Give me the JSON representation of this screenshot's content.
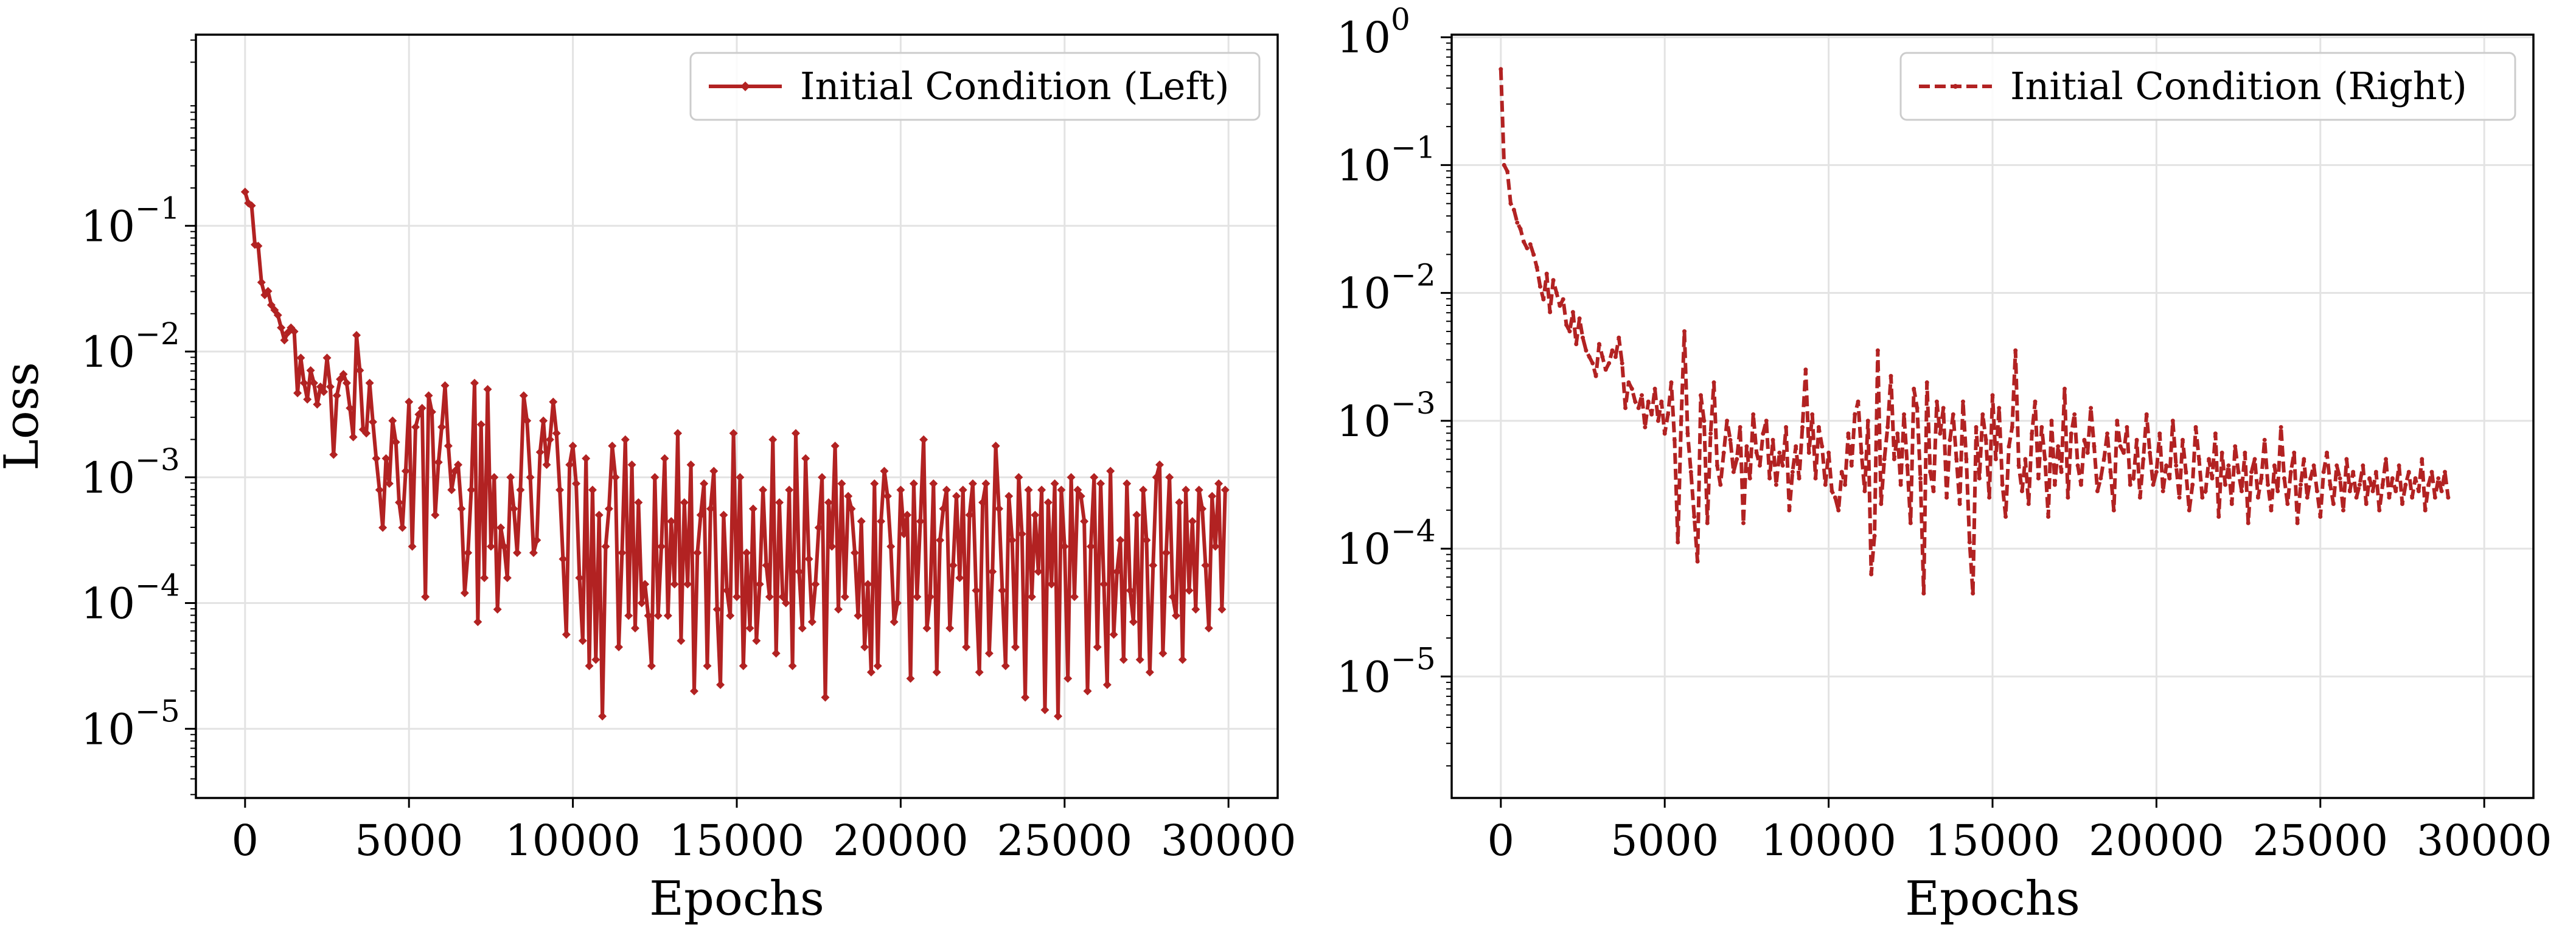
{
  "chart_data": [
    {
      "type": "line",
      "panel": "left",
      "title": "",
      "xlabel": "Epochs",
      "ylabel": "Loss",
      "yscale": "log",
      "xlim": [
        -1500,
        31500
      ],
      "ylim_exp": [
        -5.55,
        0.52
      ],
      "xticks": [
        0,
        5000,
        10000,
        15000,
        20000,
        25000,
        30000
      ],
      "xtick_labels": [
        "0",
        "5000",
        "10000",
        "15000",
        "20000",
        "25000",
        "30000"
      ],
      "yticks_exp": [
        -5,
        -4,
        -3,
        -2,
        -1
      ],
      "ytick_base": "10",
      "ytick_exps": [
        "−5",
        "−4",
        "−3",
        "−2",
        "−1"
      ],
      "grid": true,
      "legend_position": "top-right",
      "series": [
        {
          "name": "Initial Condition (Left)",
          "color": "#b22222",
          "line_style": "solid",
          "marker": "diamond",
          "x_start": 0,
          "x_step": 100,
          "log10_values": [
            -0.73,
            -0.82,
            -0.84,
            -1.15,
            -1.16,
            -1.45,
            -1.55,
            -1.52,
            -1.63,
            -1.67,
            -1.71,
            -1.81,
            -1.91,
            -1.85,
            -1.81,
            -1.84,
            -2.33,
            -2.05,
            -2.25,
            -2.38,
            -2.15,
            -2.25,
            -2.42,
            -2.28,
            -2.32,
            -2.05,
            -2.28,
            -2.82,
            -2.35,
            -2.22,
            -2.18,
            -2.25,
            -2.45,
            -2.68,
            -1.87,
            -2.15,
            -2.62,
            -2.65,
            -2.25,
            -2.56,
            -2.85,
            -3.1,
            -3.4,
            -2.85,
            -3.05,
            -2.55,
            -2.72,
            -3.2,
            -3.4,
            -2.95,
            -2.4,
            -3.55,
            -2.6,
            -2.5,
            -2.45,
            -3.95,
            -2.35,
            -2.48,
            -3.3,
            -2.88,
            -2.6,
            -2.27,
            -2.75,
            -3.1,
            -2.95,
            -2.9,
            -3.25,
            -3.92,
            -3.6,
            -3.1,
            -2.25,
            -4.15,
            -2.58,
            -3.8,
            -2.3,
            -3.55,
            -3.0,
            -4.05,
            -3.4,
            -3.55,
            -3.8,
            -3.0,
            -3.25,
            -3.6,
            -3.1,
            -2.35,
            -2.55,
            -3.0,
            -3.6,
            -3.5,
            -2.8,
            -2.55,
            -2.9,
            -2.7,
            -2.4,
            -2.65,
            -3.1,
            -3.65,
            -4.25,
            -2.9,
            -2.75,
            -3.05,
            -3.8,
            -4.3,
            -2.85,
            -4.5,
            -3.1,
            -4.45,
            -3.3,
            -4.9,
            -3.55,
            -3.25,
            -2.75,
            -3.0,
            -4.35,
            -3.6,
            -2.7,
            -4.1,
            -2.9,
            -4.2,
            -3.2,
            -4.0,
            -3.85,
            -4.1,
            -4.5,
            -3.0,
            -4.1,
            -3.55,
            -2.85,
            -4.1,
            -3.35,
            -3.85,
            -2.65,
            -4.3,
            -3.2,
            -3.85,
            -2.9,
            -4.7,
            -3.6,
            -3.3,
            -3.05,
            -4.5,
            -3.25,
            -2.95,
            -4.05,
            -4.65,
            -3.3,
            -3.9,
            -4.1,
            -2.65,
            -3.95,
            -3.0,
            -4.5,
            -3.6,
            -4.2,
            -3.25,
            -4.3,
            -3.85,
            -3.1,
            -3.7,
            -3.95,
            -2.7,
            -4.4,
            -3.2,
            -3.95,
            -4.0,
            -3.1,
            -4.5,
            -2.65,
            -3.75,
            -4.2,
            -2.85,
            -3.65,
            -4.15,
            -3.85,
            -3.4,
            -3.0,
            -4.75,
            -3.2,
            -3.55,
            -2.75,
            -4.05,
            -3.05,
            -3.95,
            -3.15,
            -3.25,
            -3.6,
            -4.1,
            -3.35,
            -4.35,
            -3.85,
            -4.55,
            -3.05,
            -4.5,
            -3.35,
            -2.95,
            -3.15,
            -3.55,
            -4.15,
            -4.0,
            -3.1,
            -3.45,
            -3.3,
            -4.6,
            -3.05,
            -3.95,
            -3.35,
            -2.7,
            -4.2,
            -3.95,
            -3.05,
            -4.55,
            -3.5,
            -3.25,
            -3.1,
            -4.2,
            -3.7,
            -3.15,
            -3.8,
            -3.1,
            -4.35,
            -3.3,
            -3.05,
            -3.9,
            -4.55,
            -3.2,
            -3.05,
            -4.4,
            -3.75,
            -2.75,
            -3.25,
            -3.9,
            -4.5,
            -3.15,
            -3.5,
            -4.35,
            -3.0,
            -3.45,
            -4.75,
            -3.1,
            -3.95,
            -3.3,
            -3.75,
            -3.1,
            -4.85,
            -3.2,
            -3.85,
            -3.05,
            -4.9,
            -3.1,
            -3.55,
            -4.6,
            -3.0,
            -3.95,
            -3.1,
            -3.15,
            -3.35,
            -4.7,
            -3.55,
            -3.0,
            -4.35,
            -3.05,
            -3.85,
            -4.65,
            -2.95,
            -4.25,
            -3.75,
            -3.5,
            -4.45,
            -3.05,
            -3.9,
            -4.15,
            -3.3,
            -4.45,
            -3.1,
            -3.5,
            -4.55,
            -3.7,
            -3.0,
            -2.9,
            -4.4,
            -3.6,
            -3.0,
            -3.95,
            -4.1,
            -3.2,
            -4.45,
            -3.1,
            -3.9,
            -3.35,
            -4.05,
            -3.1,
            -3.25,
            -3.7,
            -4.2,
            -3.15,
            -3.55,
            -3.05,
            -4.05,
            -3.1
          ]
        }
      ]
    },
    {
      "type": "line",
      "panel": "right",
      "title": "",
      "xlabel": "Epochs",
      "ylabel": "",
      "yscale": "log",
      "xlim": [
        -1500,
        31500
      ],
      "ylim_exp": [
        -5.95,
        0.02
      ],
      "xticks": [
        0,
        5000,
        10000,
        15000,
        20000,
        25000,
        30000
      ],
      "xtick_labels": [
        "0",
        "5000",
        "10000",
        "15000",
        "20000",
        "25000",
        "30000"
      ],
      "yticks_exp": [
        -5,
        -4,
        -3,
        -2,
        -1,
        0
      ],
      "ytick_base": "10",
      "ytick_exps": [
        "−5",
        "−4",
        "−3",
        "−2",
        "−1",
        "0"
      ],
      "grid": true,
      "legend_position": "top-right",
      "series": [
        {
          "name": "Initial Condition (Right)",
          "color": "#b22222",
          "line_style": "dashed",
          "marker": "small",
          "x_start": 0,
          "x_step": 100,
          "log10_values": [
            -0.25,
            -1.0,
            -1.05,
            -1.3,
            -1.35,
            -1.45,
            -1.5,
            -1.6,
            -1.65,
            -1.62,
            -1.7,
            -1.8,
            -1.95,
            -2.05,
            -1.85,
            -2.15,
            -1.9,
            -2.0,
            -2.1,
            -2.05,
            -2.25,
            -2.3,
            -2.15,
            -2.4,
            -2.2,
            -2.35,
            -2.45,
            -2.5,
            -2.55,
            -2.65,
            -2.4,
            -2.5,
            -2.6,
            -2.55,
            -2.45,
            -2.5,
            -2.35,
            -2.55,
            -2.9,
            -2.7,
            -2.75,
            -2.85,
            -2.9,
            -2.8,
            -3.05,
            -2.85,
            -2.95,
            -2.75,
            -3.0,
            -2.85,
            -3.1,
            -2.95,
            -2.7,
            -3.15,
            -3.95,
            -3.0,
            -2.3,
            -3.1,
            -3.4,
            -3.75,
            -4.1,
            -2.8,
            -3.0,
            -3.8,
            -3.1,
            -2.7,
            -3.35,
            -3.5,
            -3.25,
            -3.0,
            -3.15,
            -3.4,
            -3.3,
            -3.05,
            -3.8,
            -3.2,
            -3.45,
            -2.95,
            -3.25,
            -3.35,
            -3.1,
            -3.0,
            -3.45,
            -3.15,
            -3.5,
            -3.25,
            -3.35,
            -3.05,
            -3.7,
            -3.4,
            -3.2,
            -3.45,
            -3.05,
            -2.6,
            -3.25,
            -2.95,
            -3.45,
            -3.05,
            -3.2,
            -3.5,
            -3.25,
            -3.55,
            -3.6,
            -3.7,
            -3.4,
            -3.5,
            -3.1,
            -3.35,
            -2.95,
            -2.85,
            -3.25,
            -3.55,
            -3.0,
            -4.2,
            -3.9,
            -2.45,
            -3.65,
            -3.3,
            -3.05,
            -2.65,
            -3.3,
            -3.1,
            -3.5,
            -2.95,
            -3.35,
            -3.8,
            -2.75,
            -2.9,
            -3.45,
            -4.35,
            -2.7,
            -3.4,
            -3.55,
            -2.85,
            -3.1,
            -2.9,
            -3.6,
            -3.15,
            -2.95,
            -3.3,
            -3.65,
            -2.85,
            -3.3,
            -3.95,
            -4.35,
            -3.05,
            -3.45,
            -2.95,
            -3.15,
            -3.6,
            -2.8,
            -3.3,
            -2.9,
            -3.5,
            -3.75,
            -3.2,
            -3.05,
            -2.45,
            -3.35,
            -3.55,
            -3.3,
            -3.65,
            -3.1,
            -2.85,
            -3.45,
            -3.05,
            -3.3,
            -3.75,
            -3.0,
            -3.5,
            -3.2,
            -3.4,
            -2.75,
            -3.6,
            -3.1,
            -2.95,
            -3.35,
            -3.5,
            -3.15,
            -3.25,
            -2.9,
            -3.2,
            -3.55,
            -3.45,
            -3.3,
            -3.1,
            -3.4,
            -3.7,
            -3.0,
            -3.2,
            -3.25,
            -3.05,
            -3.5,
            -3.45,
            -3.15,
            -3.6,
            -3.3,
            -2.95,
            -3.25,
            -3.5,
            -3.4,
            -3.1,
            -3.55,
            -3.35,
            -3.45,
            -3.0,
            -3.35,
            -3.6,
            -3.15,
            -3.4,
            -3.7,
            -3.5,
            -3.05,
            -3.3,
            -3.6,
            -3.55,
            -3.3,
            -3.45,
            -3.1,
            -3.75,
            -3.25,
            -3.5,
            -3.35,
            -3.65,
            -3.2,
            -3.4,
            -3.55,
            -3.25,
            -3.8,
            -3.4,
            -3.3,
            -3.6,
            -3.45,
            -3.15,
            -3.5,
            -3.7,
            -3.35,
            -3.55,
            -3.05,
            -3.45,
            -3.65,
            -3.4,
            -3.25,
            -3.8,
            -3.5,
            -3.3,
            -3.6,
            -3.45,
            -3.35,
            -3.55,
            -3.75,
            -3.4,
            -3.25,
            -3.5,
            -3.65,
            -3.35,
            -3.45,
            -3.7,
            -3.3,
            -3.55,
            -3.4,
            -3.6,
            -3.5,
            -3.35,
            -3.65,
            -3.45,
            -3.55,
            -3.4,
            -3.7,
            -3.5,
            -3.3,
            -3.6,
            -3.45,
            -3.55,
            -3.35,
            -3.65,
            -3.5,
            -3.4,
            -3.6,
            -3.45,
            -3.55,
            -3.3,
            -3.7,
            -3.5,
            -3.4,
            -3.6,
            -3.45,
            -3.55,
            -3.4,
            -3.6
          ]
        }
      ]
    }
  ]
}
